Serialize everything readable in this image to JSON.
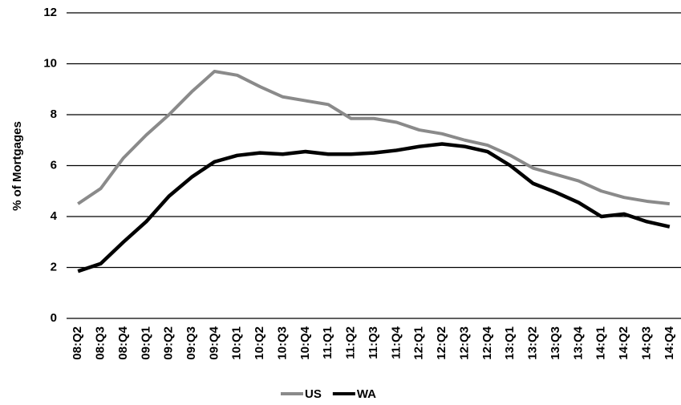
{
  "chart_data": {
    "type": "line",
    "y_label": "% of Mortgages",
    "categories": [
      "08:Q2",
      "08:Q3",
      "08:Q4",
      "09:Q1",
      "09:Q2",
      "09:Q3",
      "09:Q4",
      "10:Q1",
      "10:Q2",
      "10:Q3",
      "10:Q4",
      "11:Q1",
      "11:Q2",
      "11:Q3",
      "11:Q4",
      "12:Q1",
      "12:Q2",
      "12:Q3",
      "12:Q4",
      "13:Q1",
      "13:Q2",
      "13:Q3",
      "13:Q4",
      "14:Q1",
      "14:Q2",
      "14:Q3",
      "14:Q4"
    ],
    "series": [
      {
        "name": "US",
        "color": "#8a8a8a",
        "values": [
          4.5,
          5.1,
          6.3,
          7.2,
          8.0,
          8.9,
          9.7,
          9.55,
          9.1,
          8.7,
          8.55,
          8.4,
          7.85,
          7.85,
          7.7,
          7.4,
          7.25,
          7.0,
          6.8,
          6.4,
          5.9,
          5.65,
          5.4,
          5.0,
          4.75,
          4.6,
          4.5
        ]
      },
      {
        "name": "WA",
        "color": "#000000",
        "values": [
          1.85,
          2.15,
          3.0,
          3.8,
          4.8,
          5.55,
          6.15,
          6.4,
          6.5,
          6.45,
          6.55,
          6.45,
          6.45,
          6.5,
          6.6,
          6.75,
          6.85,
          6.75,
          6.55,
          6.0,
          5.3,
          4.95,
          4.55,
          4.0,
          4.1,
          3.8,
          3.6
        ]
      }
    ],
    "ylim": [
      0,
      12
    ],
    "yticks": [
      0,
      2,
      4,
      6,
      8,
      10,
      12
    ],
    "grid": true,
    "legend": "bottom"
  }
}
